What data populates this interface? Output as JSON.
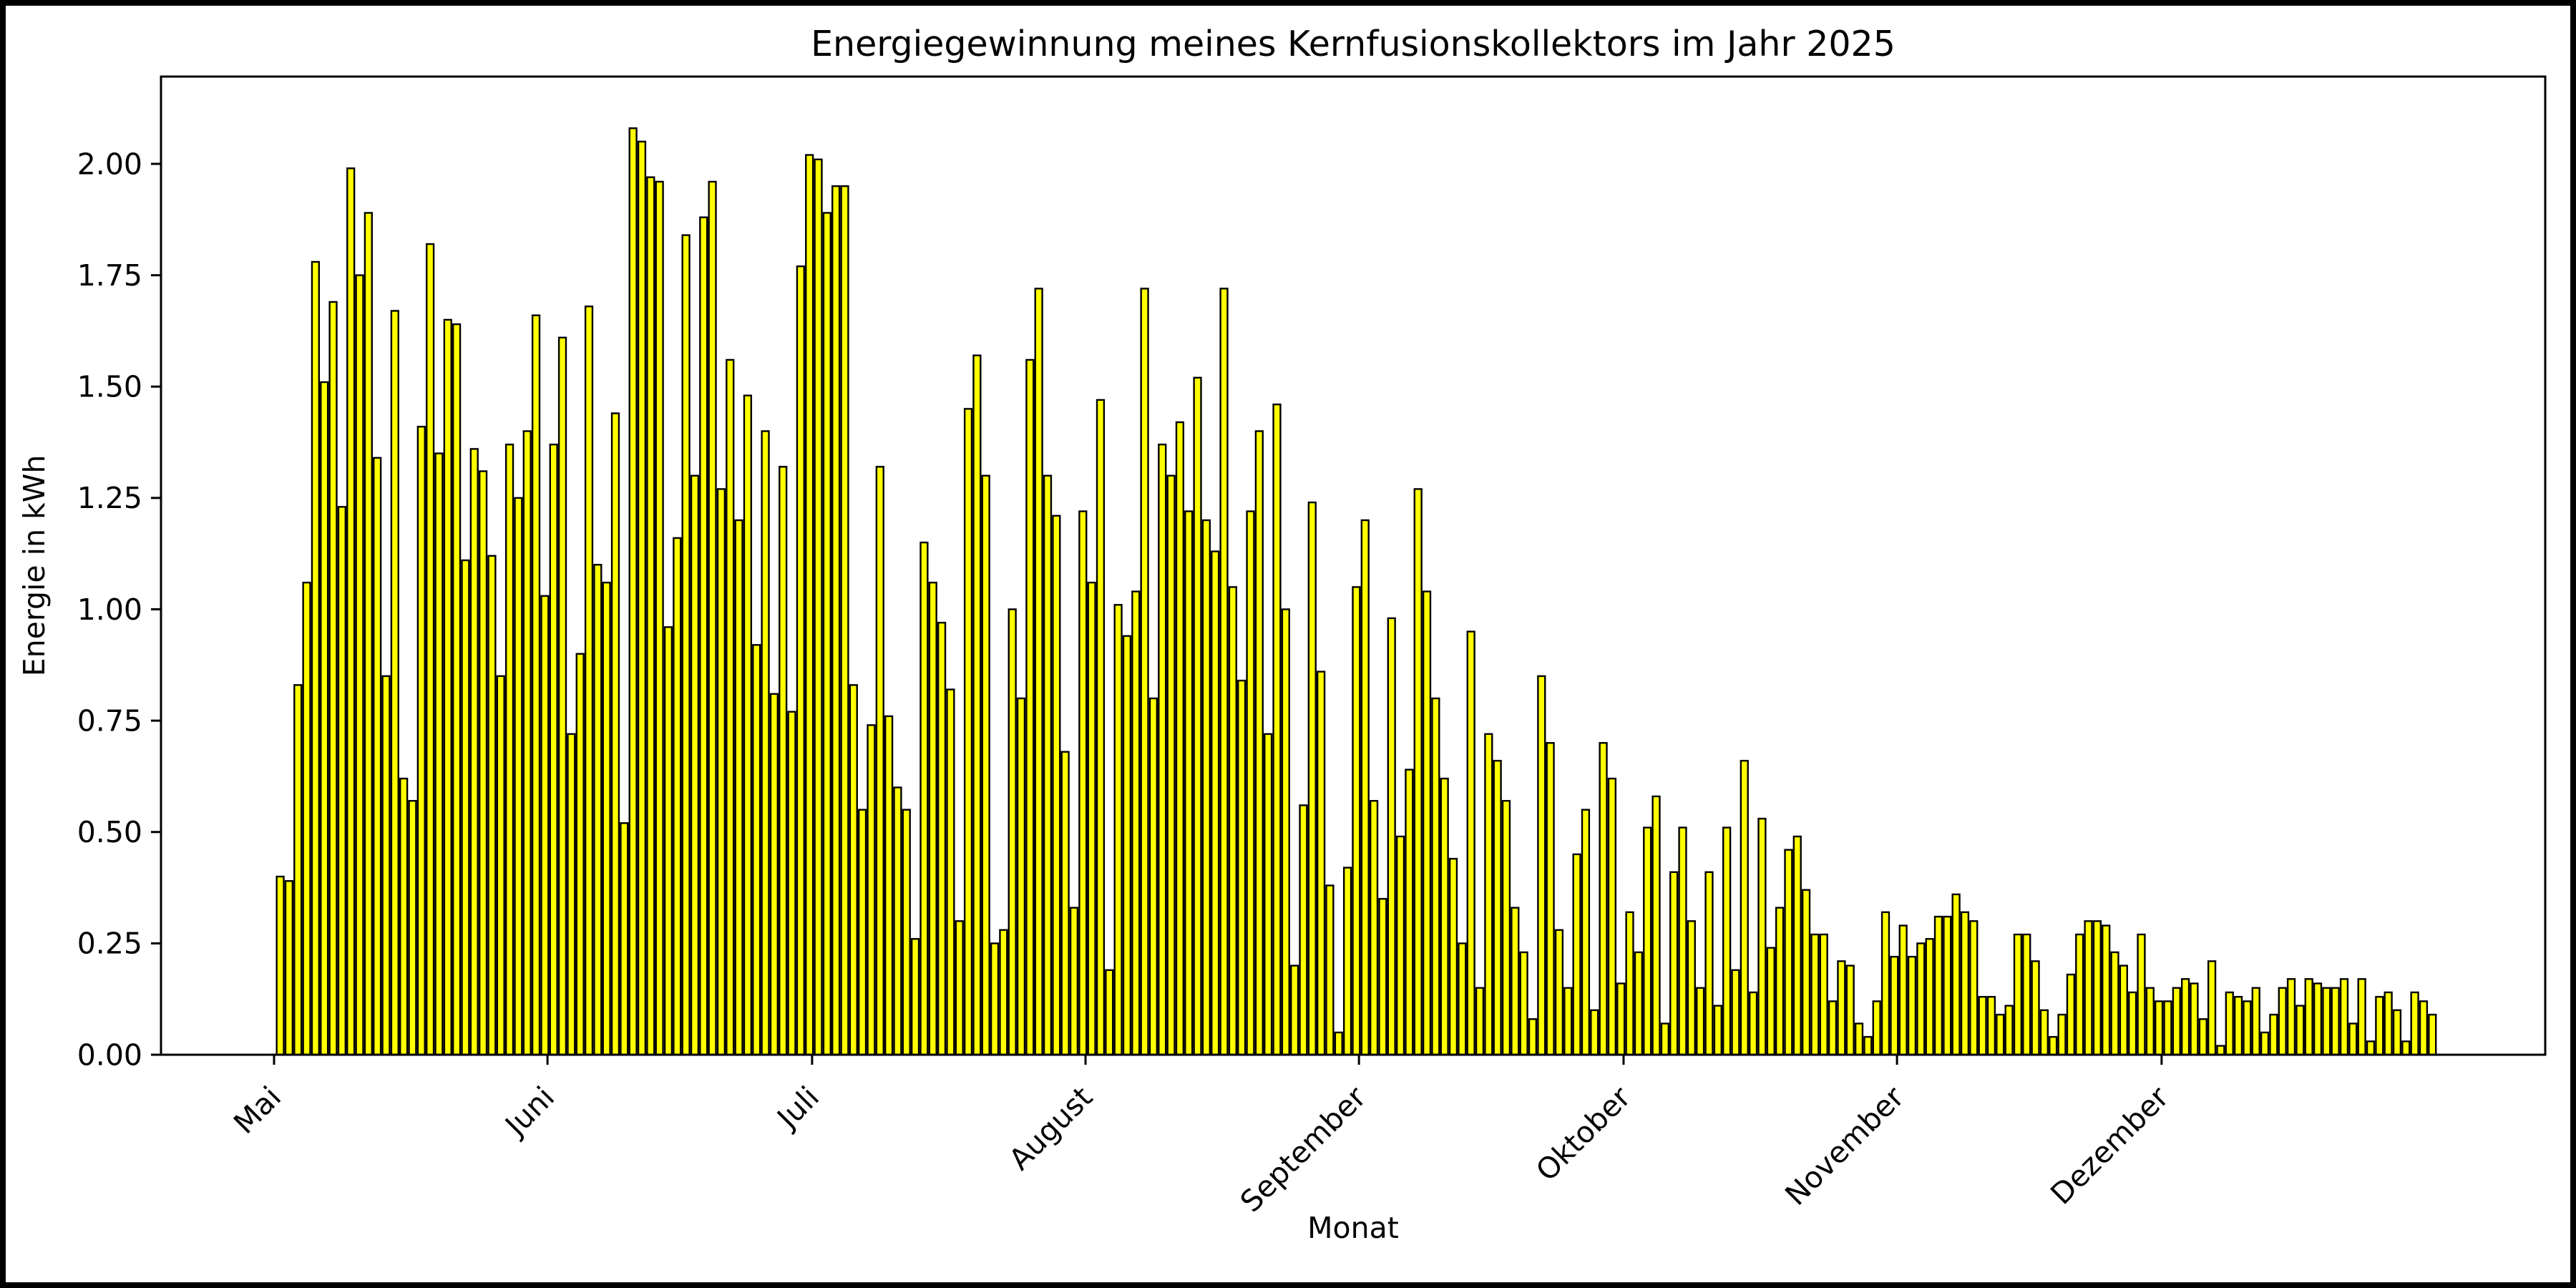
{
  "figure": {
    "title": "Energiegewinnung meines Kernfusionskollektors im Jahr 2025",
    "xlabel": "Monat",
    "ylabel": "Energie in kWh"
  },
  "chart_data": {
    "type": "bar",
    "title": "Energiegewinnung meines Kernfusionskollektors im Jahr 2025",
    "xlabel": "Monat",
    "ylabel": "Energie in kWh",
    "legend": "none",
    "grid": false,
    "background_color": "#ffffff",
    "bar_fill_color": "#ffff00",
    "bar_edge_color": "#000000",
    "frame_color": "#000000",
    "ylim": [
      0,
      2.196
    ],
    "yticks": [
      0.0,
      0.25,
      0.5,
      0.75,
      1.0,
      1.25,
      1.5,
      1.75,
      2.0
    ],
    "ytick_labels": [
      "0.00",
      "0.25",
      "0.50",
      "0.75",
      "1.00",
      "1.25",
      "1.50",
      "1.75",
      "2.00"
    ],
    "xtick_labels": [
      "Mai",
      "Juni",
      "Juli",
      "August",
      "September",
      "Oktober",
      "November",
      "Dezember"
    ],
    "month_start_day_index": [
      0,
      31,
      61,
      92,
      123,
      153,
      184,
      214
    ],
    "series": [
      {
        "name": "Mai",
        "values": [
          0.4,
          0.39,
          0.83,
          1.06,
          1.78,
          1.51,
          1.69,
          1.23,
          1.99,
          1.75,
          1.89,
          1.34,
          0.85,
          1.67,
          0.62,
          0.57,
          1.41,
          1.82,
          1.35,
          1.65,
          1.64,
          1.11,
          1.36,
          1.31,
          1.12,
          0.85,
          1.37,
          1.25,
          1.4,
          1.66,
          1.03
        ]
      },
      {
        "name": "Juni",
        "values": [
          1.37,
          1.61,
          0.72,
          0.9,
          1.68,
          1.1,
          1.06,
          1.44,
          0.52,
          2.08,
          2.05,
          1.97,
          1.96,
          0.96,
          1.16,
          1.84,
          1.3,
          1.88,
          1.96,
          1.27,
          1.56,
          1.2,
          1.48,
          0.92,
          1.4,
          0.81,
          1.32,
          0.77,
          1.77,
          2.02
        ]
      },
      {
        "name": "Juli",
        "values": [
          2.01,
          1.89,
          1.95,
          1.95,
          0.83,
          0.55,
          0.74,
          1.32,
          0.76,
          0.6,
          0.55,
          0.26,
          1.15,
          1.06,
          0.97,
          0.82,
          0.3,
          1.45,
          1.57,
          1.3,
          0.25,
          0.28,
          1.0,
          0.8,
          1.56,
          1.72,
          1.3,
          1.21,
          0.68,
          0.33,
          1.22
        ]
      },
      {
        "name": "August",
        "values": [
          1.06,
          1.47,
          0.19,
          1.01,
          0.94,
          1.04,
          1.72,
          0.8,
          1.37,
          1.3,
          1.42,
          1.22,
          1.52,
          1.2,
          1.13,
          1.72,
          1.05,
          0.84,
          1.22,
          1.4,
          0.72,
          1.46,
          1.0,
          0.2,
          0.56,
          1.24,
          0.86,
          0.38,
          0.05,
          0.42,
          1.05
        ]
      },
      {
        "name": "September",
        "values": [
          1.2,
          0.57,
          0.35,
          0.98,
          0.49,
          0.64,
          1.27,
          1.04,
          0.8,
          0.62,
          0.44,
          0.25,
          0.95,
          0.15,
          0.72,
          0.66,
          0.57,
          0.33,
          0.23,
          0.08,
          0.85,
          0.7,
          0.28,
          0.15,
          0.45,
          0.55,
          0.1,
          0.7,
          0.62,
          0.16
        ]
      },
      {
        "name": "Oktober",
        "values": [
          0.32,
          0.23,
          0.51,
          0.58,
          0.07,
          0.41,
          0.51,
          0.3,
          0.15,
          0.41,
          0.11,
          0.51,
          0.19,
          0.66,
          0.14,
          0.53,
          0.24,
          0.33,
          0.46,
          0.49,
          0.37,
          0.27,
          0.27,
          0.12,
          0.21,
          0.2,
          0.07,
          0.04,
          0.12,
          0.32,
          0.22
        ]
      },
      {
        "name": "November",
        "values": [
          0.29,
          0.22,
          0.25,
          0.26,
          0.31,
          0.31,
          0.36,
          0.32,
          0.3,
          0.13,
          0.13,
          0.09,
          0.11,
          0.27,
          0.27,
          0.21,
          0.1,
          0.04,
          0.09,
          0.18,
          0.27,
          0.3,
          0.3,
          0.29,
          0.23,
          0.2,
          0.14,
          0.27,
          0.15,
          0.12
        ]
      },
      {
        "name": "Dezember",
        "values": [
          0.12,
          0.15,
          0.17,
          0.16,
          0.08,
          0.21,
          0.02,
          0.14,
          0.13,
          0.12,
          0.15,
          0.05,
          0.09,
          0.15,
          0.17,
          0.11,
          0.17,
          0.16,
          0.15,
          0.15,
          0.17,
          0.07,
          0.17,
          0.03,
          0.13,
          0.14,
          0.1,
          0.03,
          0.14,
          0.12,
          0.09
        ]
      }
    ]
  },
  "layout_note": "daily bars May 1 - Dec 31 2025"
}
